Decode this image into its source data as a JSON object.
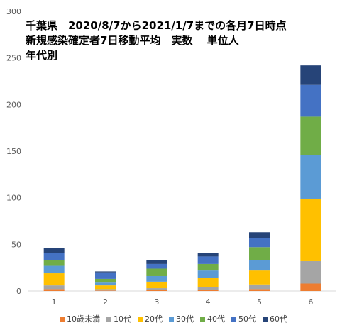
{
  "chart_data": {
    "type": "bar",
    "stacked": true,
    "title_lines": [
      "千葉県　2020/8/7から2021/1/7までの各月7日時点",
      "新規感染確定者7日移動平均　実数　 単位人",
      "年代別"
    ],
    "categories": [
      "1",
      "2",
      "3",
      "4",
      "5",
      "6"
    ],
    "ylim": [
      0,
      300
    ],
    "yticks": [
      0,
      50,
      100,
      150,
      200,
      250,
      300
    ],
    "grid": false,
    "legend_position": "bottom",
    "series": [
      {
        "name": "10歳未満",
        "color": "#ED7D31",
        "values": [
          2,
          0.5,
          1.5,
          1,
          2,
          8
        ]
      },
      {
        "name": "10代",
        "color": "#A5A5A5",
        "values": [
          4,
          1.5,
          1.5,
          3,
          5,
          24
        ]
      },
      {
        "name": "20代",
        "color": "#FFC000",
        "values": [
          13,
          4,
          7,
          10,
          15,
          67
        ]
      },
      {
        "name": "30代",
        "color": "#5B9BD5",
        "values": [
          8,
          3,
          6,
          8,
          11,
          47
        ]
      },
      {
        "name": "40代",
        "color": "#70AD47",
        "values": [
          6,
          4,
          8,
          7,
          14,
          41
        ]
      },
      {
        "name": "50代",
        "color": "#4472C4",
        "values": [
          8,
          7,
          5,
          8,
          10,
          34
        ]
      },
      {
        "name": "60代",
        "color": "#264478",
        "values": [
          5,
          1,
          4,
          4,
          6,
          21
        ]
      }
    ]
  }
}
